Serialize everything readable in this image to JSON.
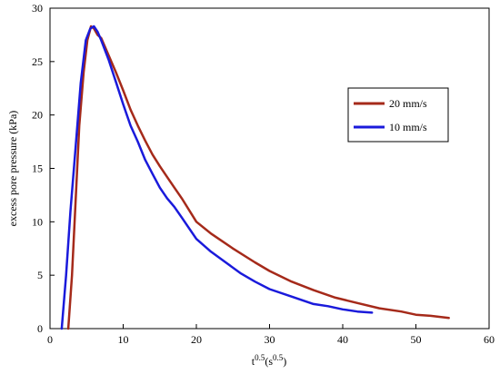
{
  "chart_data": {
    "type": "line",
    "xlabel_main": "t",
    "xlabel_exp1": "0.5",
    "xlabel_unit": "(s",
    "xlabel_exp2": "0.5",
    "xlabel_close": ")",
    "ylabel": "excess pore pressure (kPa)",
    "xlim": [
      0,
      60
    ],
    "ylim": [
      0,
      30
    ],
    "xticks": [
      "0",
      "10",
      "20",
      "30",
      "40",
      "50",
      "60"
    ],
    "yticks": [
      "0",
      "5",
      "10",
      "15",
      "20",
      "25",
      "30"
    ],
    "grid": false,
    "legend_position": "right",
    "series": [
      {
        "name": "20 mm/s",
        "color": "#a52a1a",
        "points": [
          [
            2.5,
            0
          ],
          [
            3.0,
            5
          ],
          [
            3.5,
            12
          ],
          [
            4.0,
            19
          ],
          [
            4.6,
            24
          ],
          [
            5.1,
            27
          ],
          [
            5.6,
            28.3
          ],
          [
            6.0,
            28.1
          ],
          [
            6.5,
            27.5
          ],
          [
            7.0,
            27.2
          ],
          [
            8.0,
            25.6
          ],
          [
            9.0,
            24.0
          ],
          [
            10.0,
            22.3
          ],
          [
            11.0,
            20.5
          ],
          [
            12.0,
            19.0
          ],
          [
            13.0,
            17.6
          ],
          [
            14.0,
            16.3
          ],
          [
            15.0,
            15.2
          ],
          [
            16.0,
            14.2
          ],
          [
            17.0,
            13.2
          ],
          [
            18.0,
            12.2
          ],
          [
            20.0,
            10.0
          ],
          [
            22.0,
            8.9
          ],
          [
            25.0,
            7.5
          ],
          [
            28.0,
            6.2
          ],
          [
            30.0,
            5.4
          ],
          [
            33.0,
            4.4
          ],
          [
            36.0,
            3.6
          ],
          [
            39.0,
            2.9
          ],
          [
            42.0,
            2.4
          ],
          [
            45.0,
            1.9
          ],
          [
            48.0,
            1.6
          ],
          [
            50.0,
            1.3
          ],
          [
            52.0,
            1.2
          ],
          [
            54.5,
            1.0
          ]
        ]
      },
      {
        "name": "10 mm/s",
        "color": "#1a1adb",
        "points": [
          [
            1.6,
            0
          ],
          [
            2.2,
            5
          ],
          [
            2.8,
            11
          ],
          [
            3.5,
            17
          ],
          [
            4.2,
            23
          ],
          [
            4.9,
            27
          ],
          [
            5.5,
            28.1
          ],
          [
            6.0,
            28.3
          ],
          [
            6.5,
            27.8
          ],
          [
            7.0,
            27.0
          ],
          [
            8.0,
            25.2
          ],
          [
            9.0,
            23.1
          ],
          [
            10.0,
            21.0
          ],
          [
            11.0,
            19.0
          ],
          [
            12.0,
            17.5
          ],
          [
            13.0,
            15.8
          ],
          [
            14.0,
            14.5
          ],
          [
            15.0,
            13.2
          ],
          [
            16.0,
            12.2
          ],
          [
            17.0,
            11.4
          ],
          [
            18.0,
            10.4
          ],
          [
            20.0,
            8.4
          ],
          [
            22.0,
            7.2
          ],
          [
            24.0,
            6.2
          ],
          [
            26.0,
            5.2
          ],
          [
            28.0,
            4.4
          ],
          [
            30.0,
            3.7
          ],
          [
            33.0,
            3.0
          ],
          [
            36.0,
            2.3
          ],
          [
            38.0,
            2.1
          ],
          [
            40.0,
            1.8
          ],
          [
            42.0,
            1.6
          ],
          [
            44.0,
            1.5
          ]
        ]
      }
    ]
  }
}
